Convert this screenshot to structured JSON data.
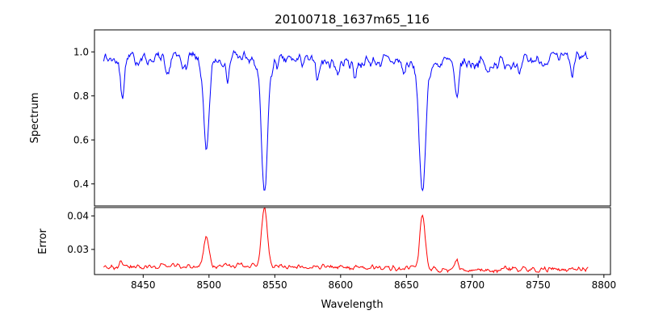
{
  "chart_data": {
    "type": "line",
    "title": "20100718_1637m65_116",
    "xlabel": "Wavelength",
    "seed": 7,
    "xlim": [
      8413,
      8805
    ],
    "x_range_data": [
      8420,
      8788
    ],
    "x_ticks": [
      8450,
      8500,
      8550,
      8600,
      8650,
      8700,
      8750,
      8800
    ],
    "x_tick_labels": [
      "8450",
      "8500",
      "8550",
      "8600",
      "8650",
      "8700",
      "8750",
      "8800"
    ],
    "grid": false,
    "legend": "none",
    "panels": [
      {
        "name": "spectrum",
        "ylabel": "Spectrum",
        "color": "#0000ff",
        "ylim": [
          0.3,
          1.1
        ],
        "y_ticks": [
          0.4,
          0.6,
          0.8,
          1.0
        ],
        "y_tick_labels": [
          "0.4",
          "0.6",
          "0.8",
          "1.0"
        ],
        "continuum": 0.965,
        "noise_sigma": 0.015,
        "absorption_lines": [
          {
            "center": 8434.0,
            "depth": 0.16,
            "width": 1.5
          },
          {
            "center": 8468.0,
            "depth": 0.1,
            "width": 1.5
          },
          {
            "center": 8482.0,
            "depth": 0.06,
            "width": 1.2
          },
          {
            "center": 8498.0,
            "depth": 0.42,
            "width": 2.0,
            "wing_depth": 0.03,
            "wing_width": 6
          },
          {
            "center": 8514.0,
            "depth": 0.1,
            "width": 1.5
          },
          {
            "center": 8542.1,
            "depth": 0.58,
            "width": 2.2,
            "wing_depth": 0.05,
            "wing_width": 8
          },
          {
            "center": 8582.0,
            "depth": 0.07,
            "width": 1.4
          },
          {
            "center": 8598.0,
            "depth": 0.05,
            "width": 1.2
          },
          {
            "center": 8611.0,
            "depth": 0.06,
            "width": 1.3
          },
          {
            "center": 8648.0,
            "depth": 0.05,
            "width": 1.2
          },
          {
            "center": 8662.1,
            "depth": 0.57,
            "width": 2.2,
            "wing_depth": 0.05,
            "wing_width": 7
          },
          {
            "center": 8688.0,
            "depth": 0.17,
            "width": 1.6
          },
          {
            "center": 8712.0,
            "depth": 0.06,
            "width": 1.3
          },
          {
            "center": 8736.0,
            "depth": 0.08,
            "width": 1.4
          },
          {
            "center": 8757.0,
            "depth": 0.05,
            "width": 1.2
          },
          {
            "center": 8776.0,
            "depth": 0.09,
            "width": 1.4
          }
        ]
      },
      {
        "name": "error",
        "ylabel": "Error",
        "color": "#ff0000",
        "ylim": [
          0.0225,
          0.0425
        ],
        "y_ticks": [
          0.03,
          0.04
        ],
        "y_tick_labels": [
          "0.03",
          "0.04"
        ],
        "baseline": 0.0245,
        "noise_sigma": 0.0004,
        "peaks": [
          {
            "center": 8434.0,
            "height": 0.0015,
            "width": 1.5
          },
          {
            "center": 8498.0,
            "height": 0.009,
            "width": 1.8
          },
          {
            "center": 8542.1,
            "height": 0.017,
            "width": 2.2
          },
          {
            "center": 8662.1,
            "height": 0.016,
            "width": 2.0
          },
          {
            "center": 8688.0,
            "height": 0.002,
            "width": 1.5
          }
        ]
      }
    ]
  }
}
